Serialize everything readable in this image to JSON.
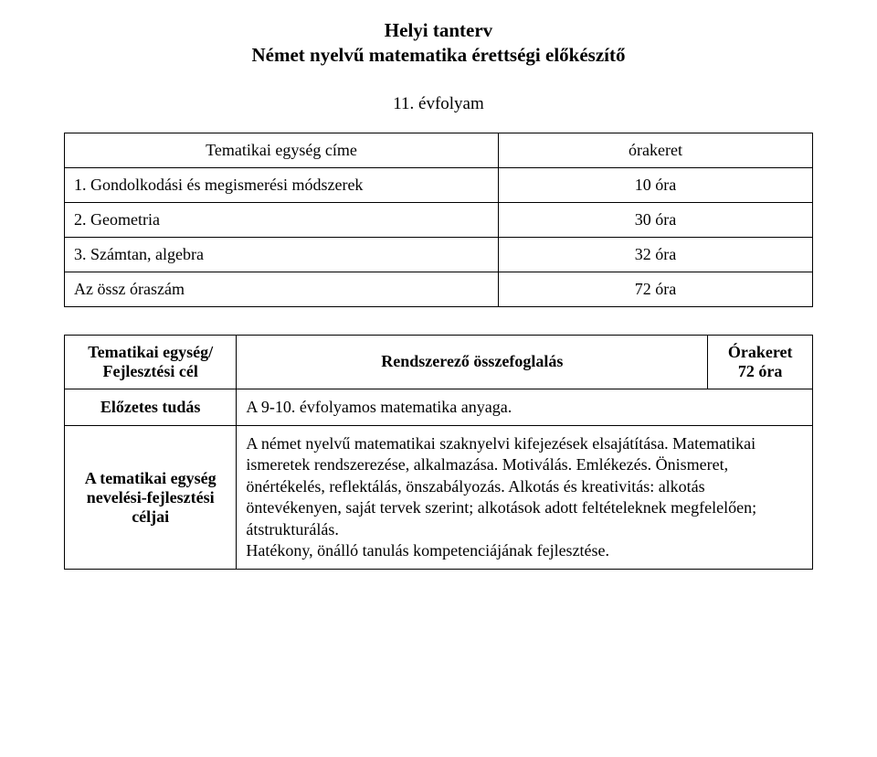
{
  "title": {
    "line1": "Helyi tanterv",
    "line2": "Német nyelvű matematika érettségi előkészítő"
  },
  "grade": "11. évfolyam",
  "hours_table": {
    "header_left": "Tematikai egység címe",
    "header_right": "órakeret",
    "rows": [
      {
        "label": "1. Gondolkodási és megismerési módszerek",
        "value": "10 óra"
      },
      {
        "label": "2. Geometria",
        "value": "30 óra"
      },
      {
        "label": "3. Számtan, algebra",
        "value": "32 óra"
      },
      {
        "label": "Az össz óraszám",
        "value": "72 óra"
      }
    ]
  },
  "goals_table": {
    "row1": {
      "label": "Tematikai egység/\nFejlesztési cél",
      "center": "Rendszerező összefoglalás",
      "right": "Órakeret\n72 óra"
    },
    "row2": {
      "label": "Előzetes tudás",
      "body": "A 9-10. évfolyamos matematika anyaga."
    },
    "row3": {
      "label": "A tematikai egység nevelési-fejlesztési céljai",
      "body": "A német nyelvű matematikai szaknyelvi kifejezések elsajátítása. Matematikai ismeretek rendszerezése, alkalmazása. Motiválás. Emlékezés. Önismeret, önértékelés, reflektálás, önszabályozás. Alkotás és kreativitás: alkotás öntevékenyen, saját tervek szerint; alkotások adott feltételeknek megfelelően; átstrukturálás.\nHatékony, önálló tanulás kompetenciájának fejlesztése."
    }
  }
}
